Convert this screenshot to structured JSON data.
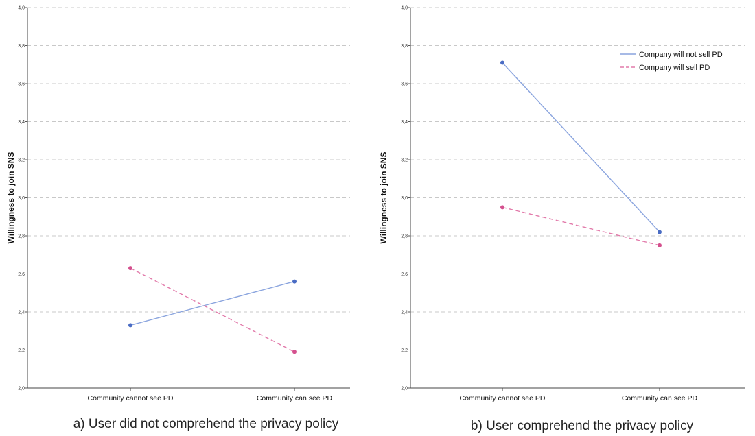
{
  "colors": {
    "not_sell": "#4a6cc4",
    "sell": "#d4508e",
    "not_sell_line": "#8aa4de",
    "sell_line": "#e27aaa",
    "grid": "#c8c8c8"
  },
  "legend": [
    "Company will not sell PD",
    "Company will sell PD"
  ],
  "chart_data": [
    {
      "type": "line",
      "caption": "a) User did not comprehend the privacy policy",
      "ylabel": "Willingness to join SNS",
      "xlabel": "",
      "categories": [
        "Community cannot see PD",
        "Community can see PD"
      ],
      "ylim": [
        2.0,
        4.0
      ],
      "yticks": [
        2.0,
        2.2,
        2.4,
        2.6,
        2.8,
        3.0,
        3.2,
        3.4,
        3.6,
        3.8,
        4.0
      ],
      "ytick_labels": [
        "2,0",
        "2,2",
        "2,4",
        "2,6",
        "2,8",
        "3,0",
        "3,2",
        "3,4",
        "3,6",
        "3,8",
        "4,0"
      ],
      "grid": true,
      "legend": "none",
      "series": [
        {
          "name": "Company will not sell PD",
          "values": [
            2.33,
            2.56
          ]
        },
        {
          "name": "Company will sell PD",
          "values": [
            2.63,
            2.19
          ]
        }
      ]
    },
    {
      "type": "line",
      "caption": "b) User comprehend the privacy policy",
      "ylabel": "Willingness to join SNS",
      "xlabel": "",
      "categories": [
        "Community cannot see PD",
        "Community can see PD"
      ],
      "ylim": [
        2.0,
        4.0
      ],
      "yticks": [
        2.0,
        2.2,
        2.4,
        2.6,
        2.8,
        3.0,
        3.2,
        3.4,
        3.6,
        3.8,
        4.0
      ],
      "ytick_labels": [
        "2,0",
        "2,2",
        "2,4",
        "2,6",
        "2,8",
        "3,0",
        "3,2",
        "3,4",
        "3,6",
        "3,8",
        "4,0"
      ],
      "grid": true,
      "legend": "top-right",
      "series": [
        {
          "name": "Company will not sell PD",
          "values": [
            3.71,
            2.82
          ]
        },
        {
          "name": "Company will sell PD",
          "values": [
            2.95,
            2.75
          ]
        }
      ]
    }
  ]
}
